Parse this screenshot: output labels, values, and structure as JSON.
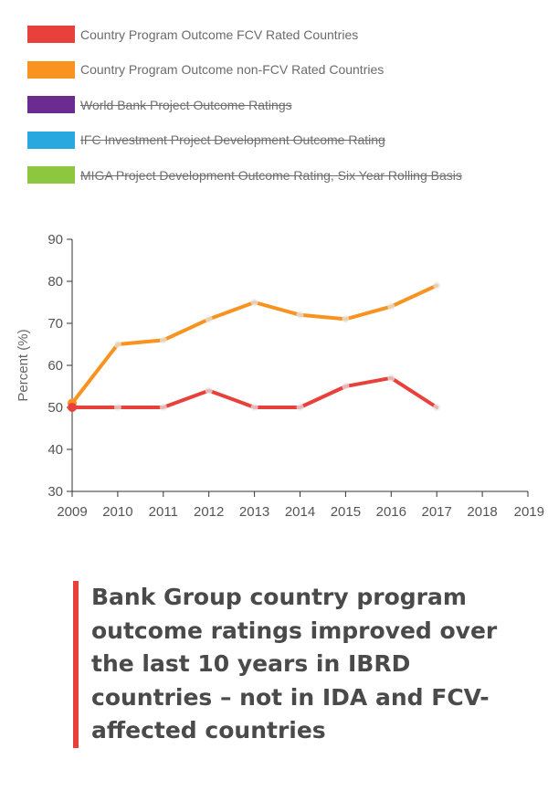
{
  "legend": [
    {
      "label": "Country Program Outcome FCV Rated Countries",
      "color": "#e8403a",
      "visible": true
    },
    {
      "label": "Country Program Outcome non-FCV Rated Countries",
      "color": "#f7931e",
      "visible": true
    },
    {
      "label": "World Bank Project Outcome Ratings",
      "color": "#6a2c91",
      "visible": false
    },
    {
      "label": "IFC Investment Project Development Outcome Rating",
      "color": "#29a8e0",
      "visible": false
    },
    {
      "label": "MIGA Project Development Outcome Rating, Six Year Rolling Basis",
      "color": "#8dc63f",
      "visible": false
    }
  ],
  "chart_data": {
    "type": "line",
    "ylabel": "Percent (%)",
    "xlabel": "",
    "x": [
      2009,
      2010,
      2011,
      2012,
      2013,
      2014,
      2015,
      2016,
      2017
    ],
    "x_ticks": [
      "2009",
      "2010",
      "2011",
      "2012",
      "2013",
      "2014",
      "2015",
      "2016",
      "2017",
      "2018",
      "2019"
    ],
    "xlim": [
      2009,
      2019
    ],
    "y_ticks": [
      "30",
      "40",
      "50",
      "60",
      "70",
      "80",
      "90"
    ],
    "ylim": [
      30,
      90
    ],
    "grid": false,
    "legend_position": "top",
    "series": [
      {
        "name": "Country Program Outcome non-FCV Rated Countries",
        "color": "#f7931e",
        "values": [
          51,
          65,
          66,
          71,
          75,
          72,
          71,
          74,
          79
        ]
      },
      {
        "name": "Country Program Outcome FCV Rated Countries",
        "color": "#e8403a",
        "values": [
          50,
          50,
          50,
          54,
          50,
          50,
          55,
          57,
          50
        ]
      }
    ]
  },
  "callout": {
    "text": "Bank Group country program outcome ratings improved over the last 10 years in IBRD countries – not in IDA and FCV-affected countries",
    "accent_color": "#e8403a"
  }
}
